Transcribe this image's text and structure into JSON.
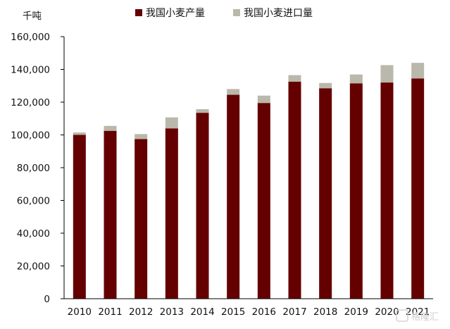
{
  "chart_data": {
    "type": "bar",
    "stacked": true,
    "unit_label": "千吨",
    "categories": [
      "2010",
      "2011",
      "2012",
      "2013",
      "2014",
      "2015",
      "2016",
      "2017",
      "2018",
      "2019",
      "2020",
      "2021"
    ],
    "series": [
      {
        "name": "我国小麦产量",
        "color": "#650000",
        "values": [
          100000,
          102500,
          97500,
          104000,
          113500,
          124500,
          119500,
          132500,
          128500,
          131500,
          132000,
          134500
        ]
      },
      {
        "name": "我国小麦进口量",
        "color": "#bab8aa",
        "values": [
          1500,
          3000,
          3000,
          6700,
          2200,
          3500,
          4500,
          4000,
          3200,
          5400,
          10600,
          9500
        ]
      }
    ],
    "ylim": [
      0,
      160000
    ],
    "y_ticks": [
      0,
      20000,
      40000,
      60000,
      80000,
      100000,
      120000,
      140000,
      160000
    ],
    "y_tick_labels": [
      "0",
      "20,000",
      "40,000",
      "60,000",
      "80,000",
      "100,000",
      "120,000",
      "140,000",
      "160,000"
    ],
    "grid": false,
    "legend_position": "top-center"
  },
  "watermark": {
    "text": "格隆汇"
  }
}
